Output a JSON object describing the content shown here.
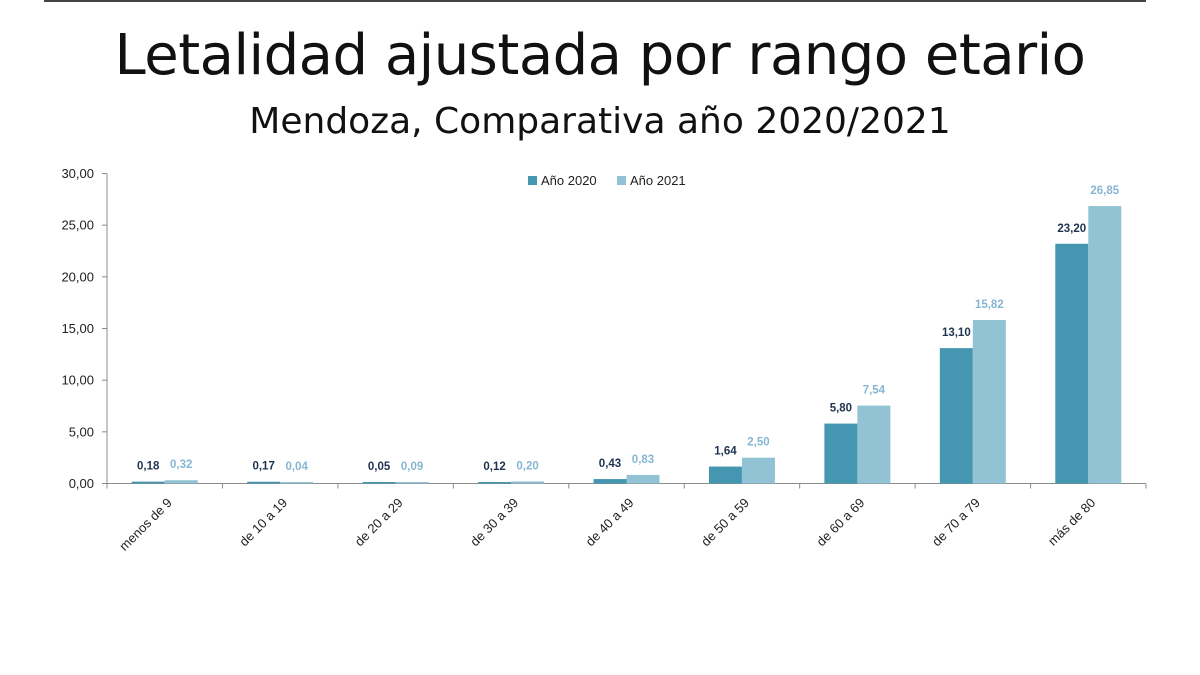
{
  "page": {
    "title": "Letalidad ajustada por rango etario",
    "subtitle": "Mendoza, Comparativa año 2020/2021"
  },
  "chart_data": {
    "type": "bar",
    "title": "Letalidad ajustada por rango etario",
    "subtitle": "Mendoza, Comparativa año 2020/2021",
    "categories": [
      "menos de 9",
      "de 10 a 19",
      "de 20 a 29",
      "de 30 a 39",
      "de 40 a 49",
      "de 50 a 59",
      "de 60 a 69",
      "de 70 a 79",
      "más de 80"
    ],
    "series": [
      {
        "name": "Año 2020",
        "color": "#4596B0",
        "label_color": "#1F3350",
        "values": [
          0.18,
          0.17,
          0.05,
          0.12,
          0.43,
          1.64,
          5.8,
          13.1,
          23.2
        ],
        "labels": [
          "0,18",
          "0,17",
          "0,05",
          "0,12",
          "0,43",
          "1,64",
          "5,80",
          "13,10",
          "23,20"
        ]
      },
      {
        "name": "Año 2021",
        "color": "#92C3D5",
        "label_color": "#86B6D3",
        "values": [
          0.32,
          0.04,
          0.09,
          0.2,
          0.83,
          2.5,
          7.54,
          15.82,
          26.85
        ],
        "labels": [
          "0,32",
          "0,04",
          "0,09",
          "0,20",
          "0,83",
          "2,50",
          "7,54",
          "15,82",
          "26,85"
        ]
      }
    ],
    "yticks": [
      0,
      5,
      10,
      15,
      20,
      25,
      30
    ],
    "ytick_labels": [
      "0,00",
      "5,00",
      "10,00",
      "15,00",
      "20,00",
      "25,00",
      "30,00"
    ],
    "ylim": [
      0,
      30
    ],
    "xlabel": "",
    "ylabel": "",
    "legend": "top-center",
    "grid": false
  }
}
